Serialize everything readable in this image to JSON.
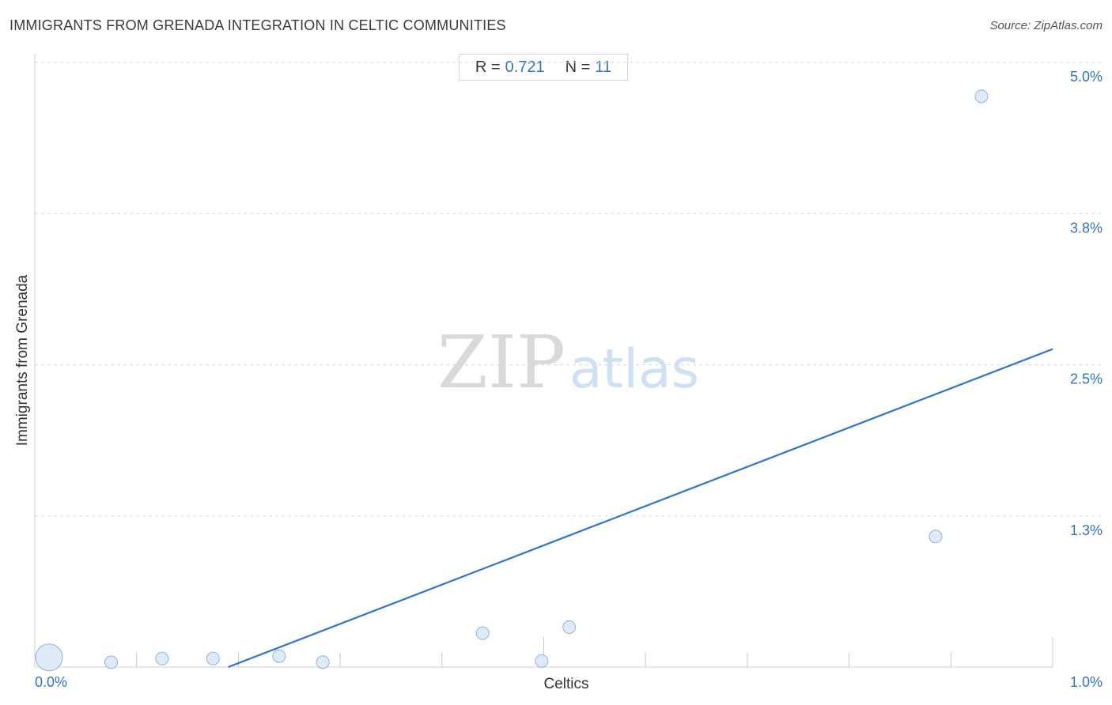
{
  "title": "IMMIGRANTS FROM GRENADA INTEGRATION IN CELTIC COMMUNITIES",
  "source": "Source: ZipAtlas.com",
  "stats": {
    "r_label": "R =",
    "r_value": "0.721",
    "n_label": "N =",
    "n_value": "11"
  },
  "watermark": {
    "zip": "ZIP",
    "atlas": "atlas"
  },
  "colors": {
    "accent": "#2f74d0",
    "point_fill": "#dce8f7",
    "point_stroke": "#8fb2df",
    "grid": "#d8d8d8"
  },
  "chart_data": {
    "type": "scatter",
    "title": "IMMIGRANTS FROM GRENADA INTEGRATION IN CELTIC COMMUNITIES",
    "xlabel": "Celtics",
    "ylabel": "Immigrants from Grenada",
    "xlim": [
      0.0,
      1.0
    ],
    "ylim": [
      0.0,
      5.0
    ],
    "x_tick_labels": [
      "0.0%",
      "1.0%"
    ],
    "y_ticks": [
      {
        "value": 5.0,
        "label": "5.0%"
      },
      {
        "value": 3.75,
        "label": "3.8%"
      },
      {
        "value": 2.5,
        "label": "2.5%"
      },
      {
        "value": 1.25,
        "label": "1.3%"
      }
    ],
    "grid": true,
    "points": [
      {
        "x": 0.014,
        "y": 0.08,
        "size": "large"
      },
      {
        "x": 0.075,
        "y": 0.04,
        "size": "small"
      },
      {
        "x": 0.125,
        "y": 0.07,
        "size": "small"
      },
      {
        "x": 0.175,
        "y": 0.07,
        "size": "small"
      },
      {
        "x": 0.24,
        "y": 0.09,
        "size": "small"
      },
      {
        "x": 0.283,
        "y": 0.04,
        "size": "small"
      },
      {
        "x": 0.44,
        "y": 0.28,
        "size": "small"
      },
      {
        "x": 0.498,
        "y": 0.05,
        "size": "small"
      },
      {
        "x": 0.525,
        "y": 0.33,
        "size": "small"
      },
      {
        "x": 0.885,
        "y": 1.08,
        "size": "small"
      },
      {
        "x": 0.93,
        "y": 4.72,
        "size": "small"
      }
    ],
    "trendline": {
      "x": [
        0.19,
        1.0
      ],
      "y": [
        0.0,
        2.63
      ]
    },
    "r": 0.721,
    "n": 11
  }
}
